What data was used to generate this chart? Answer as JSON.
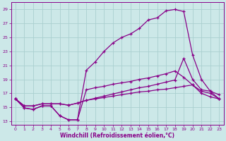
{
  "xlabel": "Windchill (Refroidissement éolien,°C)",
  "bg_color": "#cce8e8",
  "grid_color": "#aacfcf",
  "line_color": "#880088",
  "xlim": [
    -0.5,
    23.5
  ],
  "ylim": [
    12.5,
    30.0
  ],
  "xticks": [
    0,
    1,
    2,
    3,
    4,
    5,
    6,
    7,
    8,
    9,
    10,
    11,
    12,
    13,
    14,
    15,
    16,
    17,
    18,
    19,
    20,
    21,
    22,
    23
  ],
  "yticks": [
    13,
    15,
    17,
    19,
    21,
    23,
    25,
    27,
    29
  ],
  "line1_x": [
    0,
    1,
    2,
    3,
    4,
    5,
    6,
    7,
    8,
    9,
    10,
    11,
    12,
    13,
    14,
    15,
    16,
    17,
    18,
    19,
    20,
    21,
    22,
    23
  ],
  "line1_y": [
    16.2,
    14.9,
    14.7,
    15.2,
    15.2,
    13.8,
    13.2,
    13.2,
    20.3,
    21.5,
    23.0,
    24.2,
    25.0,
    25.5,
    26.3,
    27.5,
    27.8,
    28.8,
    29.0,
    28.7,
    22.5,
    19.0,
    17.3,
    16.2
  ],
  "line2_x": [
    0,
    1,
    2,
    3,
    4,
    5,
    6,
    7,
    8,
    9,
    10,
    11,
    12,
    13,
    14,
    15,
    16,
    17,
    18,
    19,
    20,
    21,
    22,
    23
  ],
  "line2_y": [
    16.2,
    14.9,
    14.7,
    15.2,
    15.2,
    13.8,
    13.2,
    13.2,
    17.5,
    17.8,
    18.0,
    18.3,
    18.5,
    18.7,
    19.0,
    19.2,
    19.5,
    19.8,
    20.2,
    19.3,
    18.2,
    17.3,
    17.0,
    16.2
  ],
  "line3_x": [
    0,
    1,
    2,
    3,
    4,
    5,
    6,
    7,
    8,
    9,
    10,
    11,
    12,
    13,
    14,
    15,
    16,
    17,
    18,
    19,
    20,
    21,
    22,
    23
  ],
  "line3_y": [
    16.2,
    15.2,
    15.2,
    15.5,
    15.5,
    15.5,
    15.3,
    15.6,
    16.0,
    16.3,
    16.6,
    16.9,
    17.2,
    17.5,
    17.8,
    18.0,
    18.3,
    18.6,
    18.9,
    22.0,
    19.0,
    17.5,
    17.3,
    16.8
  ],
  "line4_x": [
    0,
    1,
    2,
    3,
    4,
    5,
    6,
    7,
    8,
    9,
    10,
    11,
    12,
    13,
    14,
    15,
    16,
    17,
    18,
    19,
    20,
    21,
    22,
    23
  ],
  "line4_y": [
    16.2,
    15.2,
    15.2,
    15.5,
    15.5,
    15.5,
    15.3,
    15.6,
    16.0,
    16.2,
    16.4,
    16.6,
    16.8,
    17.0,
    17.2,
    17.3,
    17.5,
    17.6,
    17.8,
    18.0,
    18.2,
    17.0,
    16.5,
    16.2
  ]
}
